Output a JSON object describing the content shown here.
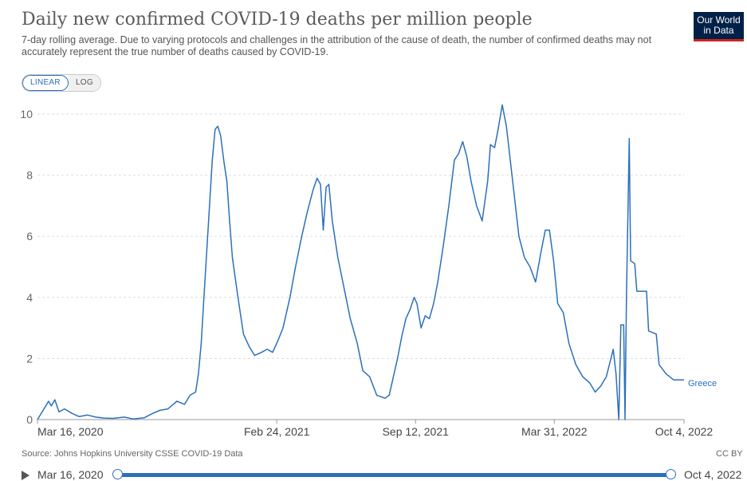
{
  "header": {
    "title": "Daily new confirmed COVID-19 deaths per million people",
    "subtitle": "7-day rolling average. Due to varying protocols and challenges in the attribution of the cause of death, the number of confirmed deaths may not accurately represent the true number of deaths caused by COVID-19.",
    "logo_line1": "Our World",
    "logo_line2": "in Data"
  },
  "scale_toggle": {
    "linear": "LINEAR",
    "log": "LOG",
    "selected": "LINEAR"
  },
  "footer": {
    "source": "Source: Johns Hopkins University CSSE COVID-19 Data",
    "license": "CC BY"
  },
  "timeline": {
    "start": "Mar 16, 2020",
    "end": "Oct 4, 2022"
  },
  "colors": {
    "line": "#2c6fbb",
    "grid": "#dddddd",
    "axis": "#666666"
  },
  "chart_data": {
    "type": "line",
    "title": "Daily new confirmed COVID-19 deaths per million people",
    "xlabel": "",
    "ylabel": "",
    "ylim": [
      0,
      10
    ],
    "yticks": [
      "0",
      "2",
      "4",
      "6",
      "8",
      "10"
    ],
    "xticks": [
      "Mar 16, 2020",
      "Feb 24, 2021",
      "Sep 12, 2021",
      "Mar 31, 2022",
      "Oct 4, 2022"
    ],
    "xlim": [
      "2020-03-16",
      "2022-10-04"
    ],
    "grid": true,
    "legend": "end-of-line label",
    "series": [
      {
        "name": "Greece",
        "points": [
          [
            "2020-03-16",
            0.0
          ],
          [
            "2020-03-24",
            0.3
          ],
          [
            "2020-04-01",
            0.6
          ],
          [
            "2020-04-05",
            0.45
          ],
          [
            "2020-04-10",
            0.65
          ],
          [
            "2020-04-16",
            0.25
          ],
          [
            "2020-04-24",
            0.35
          ],
          [
            "2020-05-05",
            0.2
          ],
          [
            "2020-05-15",
            0.1
          ],
          [
            "2020-05-27",
            0.15
          ],
          [
            "2020-06-08",
            0.08
          ],
          [
            "2020-06-20",
            0.05
          ],
          [
            "2020-07-03",
            0.04
          ],
          [
            "2020-07-19",
            0.08
          ],
          [
            "2020-08-01",
            0.02
          ],
          [
            "2020-08-17",
            0.06
          ],
          [
            "2020-08-29",
            0.2
          ],
          [
            "2020-09-08",
            0.3
          ],
          [
            "2020-09-20",
            0.35
          ],
          [
            "2020-10-03",
            0.6
          ],
          [
            "2020-10-14",
            0.5
          ],
          [
            "2020-10-22",
            0.8
          ],
          [
            "2020-10-30",
            0.9
          ],
          [
            "2020-11-03",
            1.5
          ],
          [
            "2020-11-07",
            2.5
          ],
          [
            "2020-11-11",
            4.0
          ],
          [
            "2020-11-15",
            5.5
          ],
          [
            "2020-11-19",
            7.0
          ],
          [
            "2020-11-23",
            8.5
          ],
          [
            "2020-11-27",
            9.5
          ],
          [
            "2020-12-01",
            9.6
          ],
          [
            "2020-12-05",
            9.3
          ],
          [
            "2020-12-10",
            8.4
          ],
          [
            "2020-12-14",
            7.8
          ],
          [
            "2020-12-18",
            6.5
          ],
          [
            "2020-12-22",
            5.3
          ],
          [
            "2020-12-30",
            4.0
          ],
          [
            "2021-01-07",
            2.8
          ],
          [
            "2021-01-15",
            2.4
          ],
          [
            "2021-01-23",
            2.1
          ],
          [
            "2021-02-02",
            2.2
          ],
          [
            "2021-02-10",
            2.3
          ],
          [
            "2021-02-18",
            2.2
          ],
          [
            "2021-02-26",
            2.6
          ],
          [
            "2021-03-05",
            3.0
          ],
          [
            "2021-03-15",
            4.0
          ],
          [
            "2021-03-23",
            5.0
          ],
          [
            "2021-04-01",
            6.0
          ],
          [
            "2021-04-09",
            6.8
          ],
          [
            "2021-04-17",
            7.5
          ],
          [
            "2021-04-23",
            7.9
          ],
          [
            "2021-04-28",
            7.7
          ],
          [
            "2021-05-02",
            6.2
          ],
          [
            "2021-05-06",
            7.6
          ],
          [
            "2021-05-10",
            7.7
          ],
          [
            "2021-05-15",
            6.5
          ],
          [
            "2021-05-23",
            5.3
          ],
          [
            "2021-06-01",
            4.3
          ],
          [
            "2021-06-10",
            3.3
          ],
          [
            "2021-06-20",
            2.5
          ],
          [
            "2021-06-28",
            1.6
          ],
          [
            "2021-07-08",
            1.4
          ],
          [
            "2021-07-18",
            0.8
          ],
          [
            "2021-07-30",
            0.7
          ],
          [
            "2021-08-05",
            0.8
          ],
          [
            "2021-08-11",
            1.4
          ],
          [
            "2021-08-17",
            2.0
          ],
          [
            "2021-08-23",
            2.7
          ],
          [
            "2021-08-29",
            3.3
          ],
          [
            "2021-09-04",
            3.6
          ],
          [
            "2021-09-10",
            4.0
          ],
          [
            "2021-09-14",
            3.8
          ],
          [
            "2021-09-20",
            3.0
          ],
          [
            "2021-09-26",
            3.4
          ],
          [
            "2021-10-02",
            3.3
          ],
          [
            "2021-10-08",
            3.8
          ],
          [
            "2021-10-14",
            4.5
          ],
          [
            "2021-10-22",
            5.7
          ],
          [
            "2021-10-30",
            7.0
          ],
          [
            "2021-11-07",
            8.5
          ],
          [
            "2021-11-13",
            8.7
          ],
          [
            "2021-11-19",
            9.1
          ],
          [
            "2021-11-25",
            8.6
          ],
          [
            "2021-12-01",
            7.8
          ],
          [
            "2021-12-09",
            7.0
          ],
          [
            "2021-12-17",
            6.5
          ],
          [
            "2021-12-25",
            7.8
          ],
          [
            "2021-12-29",
            9.0
          ],
          [
            "2022-01-04",
            8.9
          ],
          [
            "2022-01-09",
            9.5
          ],
          [
            "2022-01-15",
            10.3
          ],
          [
            "2022-01-21",
            9.6
          ],
          [
            "2022-01-29",
            8.0
          ],
          [
            "2022-02-08",
            6.0
          ],
          [
            "2022-02-16",
            5.3
          ],
          [
            "2022-02-24",
            5.0
          ],
          [
            "2022-03-04",
            4.5
          ],
          [
            "2022-03-12",
            5.5
          ],
          [
            "2022-03-18",
            6.2
          ],
          [
            "2022-03-24",
            6.2
          ],
          [
            "2022-03-30",
            5.2
          ],
          [
            "2022-04-05",
            3.8
          ],
          [
            "2022-04-13",
            3.5
          ],
          [
            "2022-04-21",
            2.5
          ],
          [
            "2022-05-01",
            1.8
          ],
          [
            "2022-05-11",
            1.4
          ],
          [
            "2022-05-21",
            1.2
          ],
          [
            "2022-05-29",
            0.9
          ],
          [
            "2022-06-06",
            1.1
          ],
          [
            "2022-06-14",
            1.4
          ],
          [
            "2022-06-24",
            2.3
          ],
          [
            "2022-06-28",
            1.5
          ],
          [
            "2022-07-02",
            0.0
          ],
          [
            "2022-07-05",
            3.1
          ],
          [
            "2022-07-09",
            3.1
          ],
          [
            "2022-07-11",
            0.0
          ],
          [
            "2022-07-13",
            4.0
          ],
          [
            "2022-07-17",
            9.2
          ],
          [
            "2022-07-19",
            5.2
          ],
          [
            "2022-07-25",
            5.1
          ],
          [
            "2022-07-28",
            4.2
          ],
          [
            "2022-08-11",
            4.2
          ],
          [
            "2022-08-14",
            2.9
          ],
          [
            "2022-08-25",
            2.8
          ],
          [
            "2022-08-29",
            1.8
          ],
          [
            "2022-09-08",
            1.5
          ],
          [
            "2022-09-19",
            1.3
          ],
          [
            "2022-10-04",
            1.3
          ]
        ]
      }
    ]
  }
}
